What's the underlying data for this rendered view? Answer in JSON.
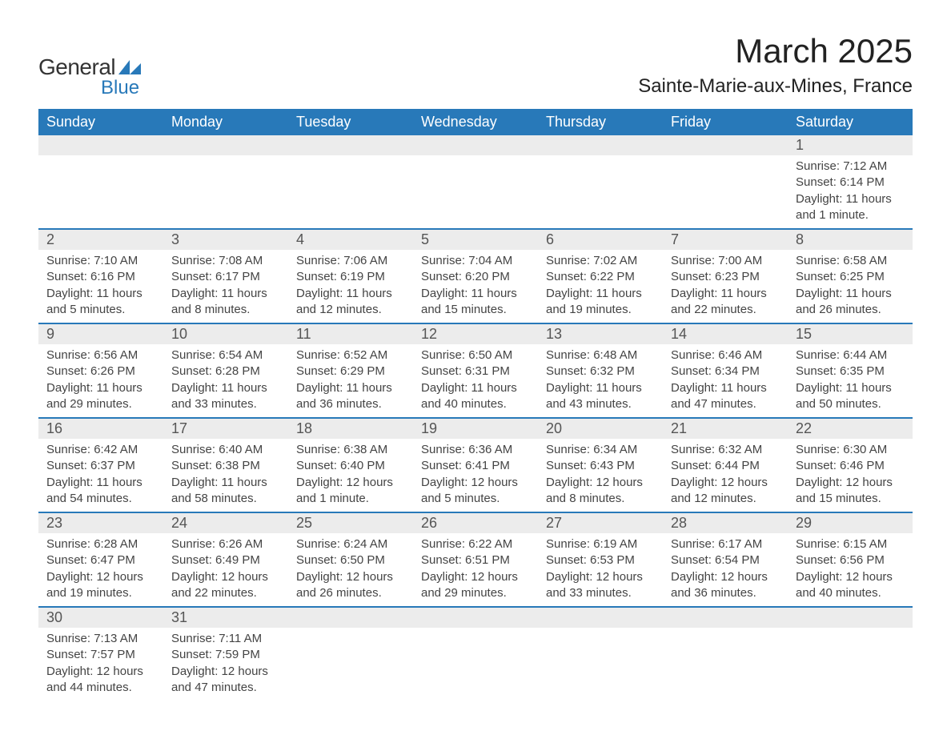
{
  "logo": {
    "text1": "General",
    "text2": "Blue",
    "accent_color": "#2879b9"
  },
  "title": "March 2025",
  "location": "Sainte-Marie-aux-Mines, France",
  "colors": {
    "header_bg": "#2879b9",
    "header_text": "#ffffff",
    "daynum_bg": "#ececec",
    "row_border": "#2879b9",
    "body_text": "#444444"
  },
  "weekdays": [
    "Sunday",
    "Monday",
    "Tuesday",
    "Wednesday",
    "Thursday",
    "Friday",
    "Saturday"
  ],
  "weeks": [
    [
      null,
      null,
      null,
      null,
      null,
      null,
      {
        "n": "1",
        "sr": "7:12 AM",
        "ss": "6:14 PM",
        "dl": "11 hours and 1 minute."
      }
    ],
    [
      {
        "n": "2",
        "sr": "7:10 AM",
        "ss": "6:16 PM",
        "dl": "11 hours and 5 minutes."
      },
      {
        "n": "3",
        "sr": "7:08 AM",
        "ss": "6:17 PM",
        "dl": "11 hours and 8 minutes."
      },
      {
        "n": "4",
        "sr": "7:06 AM",
        "ss": "6:19 PM",
        "dl": "11 hours and 12 minutes."
      },
      {
        "n": "5",
        "sr": "7:04 AM",
        "ss": "6:20 PM",
        "dl": "11 hours and 15 minutes."
      },
      {
        "n": "6",
        "sr": "7:02 AM",
        "ss": "6:22 PM",
        "dl": "11 hours and 19 minutes."
      },
      {
        "n": "7",
        "sr": "7:00 AM",
        "ss": "6:23 PM",
        "dl": "11 hours and 22 minutes."
      },
      {
        "n": "8",
        "sr": "6:58 AM",
        "ss": "6:25 PM",
        "dl": "11 hours and 26 minutes."
      }
    ],
    [
      {
        "n": "9",
        "sr": "6:56 AM",
        "ss": "6:26 PM",
        "dl": "11 hours and 29 minutes."
      },
      {
        "n": "10",
        "sr": "6:54 AM",
        "ss": "6:28 PM",
        "dl": "11 hours and 33 minutes."
      },
      {
        "n": "11",
        "sr": "6:52 AM",
        "ss": "6:29 PM",
        "dl": "11 hours and 36 minutes."
      },
      {
        "n": "12",
        "sr": "6:50 AM",
        "ss": "6:31 PM",
        "dl": "11 hours and 40 minutes."
      },
      {
        "n": "13",
        "sr": "6:48 AM",
        "ss": "6:32 PM",
        "dl": "11 hours and 43 minutes."
      },
      {
        "n": "14",
        "sr": "6:46 AM",
        "ss": "6:34 PM",
        "dl": "11 hours and 47 minutes."
      },
      {
        "n": "15",
        "sr": "6:44 AM",
        "ss": "6:35 PM",
        "dl": "11 hours and 50 minutes."
      }
    ],
    [
      {
        "n": "16",
        "sr": "6:42 AM",
        "ss": "6:37 PM",
        "dl": "11 hours and 54 minutes."
      },
      {
        "n": "17",
        "sr": "6:40 AM",
        "ss": "6:38 PM",
        "dl": "11 hours and 58 minutes."
      },
      {
        "n": "18",
        "sr": "6:38 AM",
        "ss": "6:40 PM",
        "dl": "12 hours and 1 minute."
      },
      {
        "n": "19",
        "sr": "6:36 AM",
        "ss": "6:41 PM",
        "dl": "12 hours and 5 minutes."
      },
      {
        "n": "20",
        "sr": "6:34 AM",
        "ss": "6:43 PM",
        "dl": "12 hours and 8 minutes."
      },
      {
        "n": "21",
        "sr": "6:32 AM",
        "ss": "6:44 PM",
        "dl": "12 hours and 12 minutes."
      },
      {
        "n": "22",
        "sr": "6:30 AM",
        "ss": "6:46 PM",
        "dl": "12 hours and 15 minutes."
      }
    ],
    [
      {
        "n": "23",
        "sr": "6:28 AM",
        "ss": "6:47 PM",
        "dl": "12 hours and 19 minutes."
      },
      {
        "n": "24",
        "sr": "6:26 AM",
        "ss": "6:49 PM",
        "dl": "12 hours and 22 minutes."
      },
      {
        "n": "25",
        "sr": "6:24 AM",
        "ss": "6:50 PM",
        "dl": "12 hours and 26 minutes."
      },
      {
        "n": "26",
        "sr": "6:22 AM",
        "ss": "6:51 PM",
        "dl": "12 hours and 29 minutes."
      },
      {
        "n": "27",
        "sr": "6:19 AM",
        "ss": "6:53 PM",
        "dl": "12 hours and 33 minutes."
      },
      {
        "n": "28",
        "sr": "6:17 AM",
        "ss": "6:54 PM",
        "dl": "12 hours and 36 minutes."
      },
      {
        "n": "29",
        "sr": "6:15 AM",
        "ss": "6:56 PM",
        "dl": "12 hours and 40 minutes."
      }
    ],
    [
      {
        "n": "30",
        "sr": "7:13 AM",
        "ss": "7:57 PM",
        "dl": "12 hours and 44 minutes."
      },
      {
        "n": "31",
        "sr": "7:11 AM",
        "ss": "7:59 PM",
        "dl": "12 hours and 47 minutes."
      },
      null,
      null,
      null,
      null,
      null
    ]
  ],
  "labels": {
    "sunrise": "Sunrise: ",
    "sunset": "Sunset: ",
    "daylight": "Daylight: "
  }
}
